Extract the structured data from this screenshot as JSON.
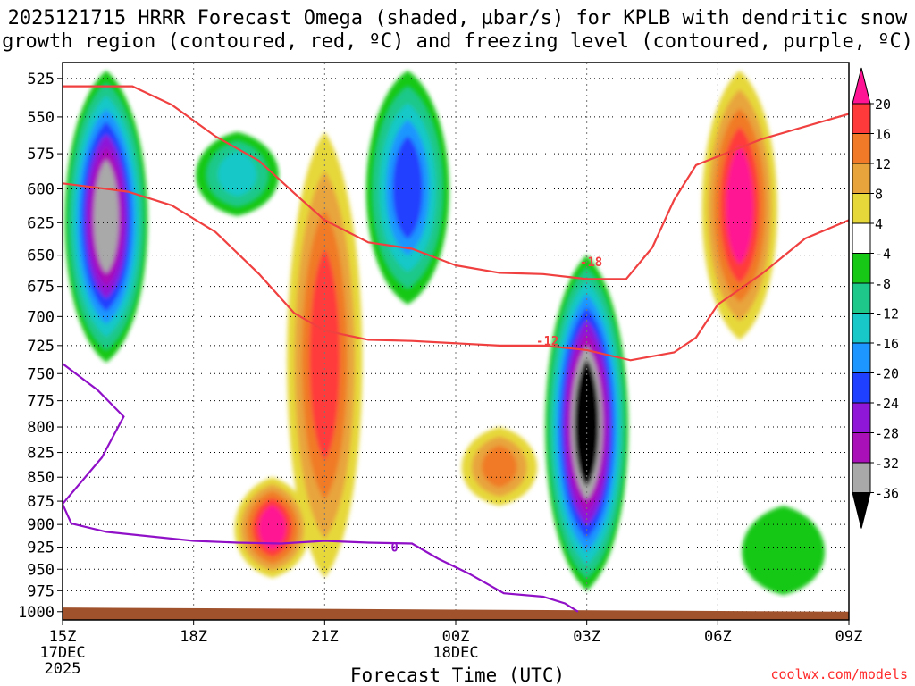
{
  "title_line1": "2025121715 HRRR Forecast Omega (shaded, µbar/s) for KPLB with dendritic snow",
  "title_line2": "growth region (contoured, red, ºC) and freezing level (contoured, purple, ºC)",
  "credit": "coolwx.com/models",
  "chart_data": {
    "type": "time-height cross section (filled contour)",
    "title": "2025121715 HRRR Forecast Omega (shaded, µbar/s) for KPLB with dendritic snow growth region (contoured, red, ºC) and freezing level (contoured, purple, ºC)",
    "xlabel": "Forecast Time (UTC)",
    "ylabel": "",
    "x_ticks": [
      {
        "label": "15Z",
        "sub1": "17DEC",
        "sub2": "2025",
        "hour": 15
      },
      {
        "label": "18Z",
        "sub1": "",
        "sub2": "",
        "hour": 18
      },
      {
        "label": "21Z",
        "sub1": "",
        "sub2": "",
        "hour": 21
      },
      {
        "label": "00Z",
        "sub1": "18DEC",
        "sub2": "",
        "hour": 24
      },
      {
        "label": "03Z",
        "sub1": "",
        "sub2": "",
        "hour": 27
      },
      {
        "label": "06Z",
        "sub1": "",
        "sub2": "",
        "hour": 30
      },
      {
        "label": "09Z",
        "sub1": "",
        "sub2": "",
        "hour": 33
      }
    ],
    "xlim": [
      15,
      33
    ],
    "y_ticks": [
      525,
      550,
      575,
      600,
      625,
      650,
      675,
      700,
      725,
      750,
      775,
      800,
      825,
      850,
      875,
      900,
      925,
      950,
      975,
      1000
    ],
    "ylim": [
      1010,
      515
    ],
    "y_scale": "log-pressure (hPa)",
    "colorbar": {
      "labels": [
        "20",
        "16",
        "12",
        "8",
        "4",
        "-4",
        "-8",
        "-12",
        "-16",
        "-20",
        "-24",
        "-28",
        "-32",
        "-36"
      ],
      "levels": [
        20,
        16,
        12,
        8,
        4,
        -4,
        -8,
        -12,
        -16,
        -20,
        -24,
        -28,
        -32,
        -36
      ],
      "bands": [
        {
          "range": ">20",
          "color": "#ff1493"
        },
        {
          "range": "16 to 20",
          "color": "#ff3a3a"
        },
        {
          "range": "12 to 16",
          "color": "#f07a28"
        },
        {
          "range": "8 to 12",
          "color": "#e8a43c"
        },
        {
          "range": "4 to 8",
          "color": "#e6d83a"
        },
        {
          "range": "-4 to 4",
          "color": "#ffffff"
        },
        {
          "range": "-8 to -4",
          "color": "#17c817"
        },
        {
          "range": "-12 to -8",
          "color": "#1ec88a"
        },
        {
          "range": "-16 to -12",
          "color": "#18c8c8"
        },
        {
          "range": "-20 to -16",
          "color": "#1e96ff"
        },
        {
          "range": "-24 to -20",
          "color": "#2040ff"
        },
        {
          "range": "-28 to -24",
          "color": "#8e17d8"
        },
        {
          "range": "-32 to -28",
          "color": "#aa10b8"
        },
        {
          "range": "-36 to -32",
          "color": "#a9a9a9"
        },
        {
          "range": "<-36",
          "color": "#000000"
        }
      ]
    },
    "omega_features": [
      {
        "hour": 16.0,
        "p_top": 520,
        "p_bottom": 740,
        "min_value": -36,
        "color": "#000000"
      },
      {
        "hour": 19.0,
        "p_top": 560,
        "p_bottom": 620,
        "min_value": -16,
        "color": "#1e96ff"
      },
      {
        "hour": 21.0,
        "p_top": 560,
        "p_bottom": 960,
        "max_value": 20,
        "color": "#ff1493"
      },
      {
        "hour": 19.8,
        "p_top": 850,
        "p_bottom": 960,
        "max_value": 24,
        "color": "#ff1493"
      },
      {
        "hour": 22.9,
        "p_top": 520,
        "p_bottom": 690,
        "min_value": -24,
        "color": "#2040ff"
      },
      {
        "hour": 27.0,
        "p_top": 650,
        "p_bottom": 975,
        "min_value": -40,
        "color": "#000000"
      },
      {
        "hour": 25.0,
        "p_top": 800,
        "p_bottom": 880,
        "max_value": 16,
        "color": "#ff3a3a"
      },
      {
        "hour": 30.5,
        "p_top": 520,
        "p_bottom": 720,
        "max_value": 24,
        "color": "#ff1493"
      },
      {
        "hour": 31.5,
        "p_top": 880,
        "p_bottom": 980,
        "min_value": -8,
        "color": "#17c817"
      }
    ],
    "series": [
      {
        "name": "-18 ºC isotherm (dendritic growth top)",
        "color": "#f04040",
        "label": "-18",
        "label_at": {
          "hour": 27.1,
          "p": 655
        },
        "points": [
          [
            15,
            530
          ],
          [
            16.6,
            530
          ],
          [
            17.5,
            542
          ],
          [
            18.5,
            563
          ],
          [
            19.5,
            580
          ],
          [
            20.3,
            603
          ],
          [
            21,
            623
          ],
          [
            22,
            640
          ],
          [
            23,
            645
          ],
          [
            24,
            658
          ],
          [
            25,
            664
          ],
          [
            26,
            665
          ],
          [
            27,
            669
          ],
          [
            27.9,
            669
          ],
          [
            28.5,
            644
          ],
          [
            29,
            608
          ],
          [
            29.5,
            583
          ],
          [
            31,
            565
          ],
          [
            33,
            548
          ]
        ]
      },
      {
        "name": "-12 ºC isotherm (dendritic growth bottom)",
        "color": "#f04040",
        "label": "-12",
        "label_at": {
          "hour": 26.1,
          "p": 721
        },
        "points": [
          [
            15,
            596
          ],
          [
            16.5,
            602
          ],
          [
            17.5,
            612
          ],
          [
            18.5,
            632
          ],
          [
            19.5,
            665
          ],
          [
            20.3,
            697
          ],
          [
            21,
            712
          ],
          [
            22,
            720
          ],
          [
            23,
            721
          ],
          [
            24,
            723
          ],
          [
            25,
            725
          ],
          [
            26,
            725
          ],
          [
            27,
            729
          ],
          [
            28,
            738
          ],
          [
            29,
            731
          ],
          [
            29.5,
            718
          ],
          [
            30,
            690
          ],
          [
            31,
            665
          ],
          [
            32,
            637
          ],
          [
            33,
            623
          ]
        ]
      },
      {
        "name": "0 ºC freezing level",
        "color": "#9010c8",
        "label": "0",
        "label_at": {
          "hour": 22.6,
          "p": 925
        },
        "points": [
          [
            15,
            741
          ],
          [
            15.8,
            765
          ],
          [
            16.4,
            790
          ],
          [
            15.9,
            830
          ],
          [
            15,
            878
          ],
          [
            15.2,
            899
          ],
          [
            16,
            908
          ],
          [
            18,
            918
          ],
          [
            19,
            920
          ],
          [
            20,
            921
          ],
          [
            21,
            918
          ],
          [
            22,
            920
          ],
          [
            23,
            921
          ],
          [
            23.6,
            938
          ],
          [
            24.3,
            955
          ],
          [
            25.1,
            978
          ],
          [
            26,
            982
          ],
          [
            26.5,
            990
          ],
          [
            26.8,
            1000
          ]
        ]
      }
    ],
    "terrain": {
      "color": "#a0522d",
      "surface_pressure": {
        "start": 995,
        "end": 1000
      }
    }
  }
}
